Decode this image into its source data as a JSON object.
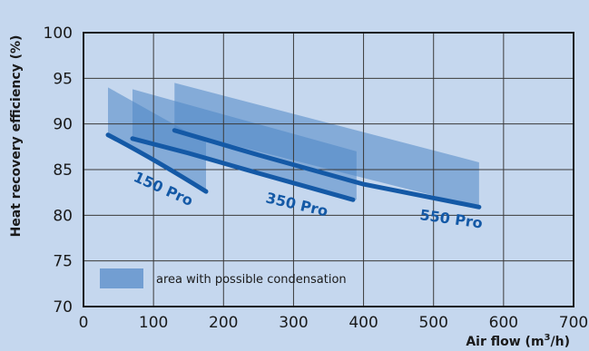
{
  "chart_data": {
    "type": "area",
    "xlabel": "Air flow (m³/h)",
    "ylabel": "Heat recovery efficiency (%)",
    "xlim": [
      0,
      700
    ],
    "ylim": [
      70,
      100
    ],
    "x_ticks": [
      "0",
      "100",
      "200",
      "300",
      "400",
      "500",
      "600",
      "700"
    ],
    "y_ticks": [
      "70",
      "75",
      "80",
      "85",
      "90",
      "95",
      "100"
    ],
    "grid": true,
    "legend": {
      "label": "area with possible condensation",
      "placement": "bottom-left"
    },
    "colors": {
      "background": "#c5d7ee",
      "plot_bg": "#c5d7ee",
      "band": "#4f86c6",
      "line": "#1459a6",
      "grid": "#3a3a3a"
    },
    "series": [
      {
        "name": "150 Pro",
        "line": [
          [
            35,
            88.8
          ],
          [
            100,
            86.2
          ],
          [
            175,
            82.6
          ]
        ],
        "condensation_area": {
          "x": [
            35,
            175
          ],
          "upper": [
            94,
            88
          ],
          "lower": [
            88.8,
            82.6
          ]
        }
      },
      {
        "name": "350 Pro",
        "line": [
          [
            70,
            88.4
          ],
          [
            150,
            86.8
          ],
          [
            250,
            84.6
          ],
          [
            385,
            81.7
          ]
        ],
        "condensation_area": {
          "x": [
            70,
            390
          ],
          "upper": [
            93.8,
            87
          ],
          "lower": [
            88.4,
            81.7
          ]
        }
      },
      {
        "name": "550 Pro",
        "line": [
          [
            130,
            89.3
          ],
          [
            250,
            86.6
          ],
          [
            400,
            83.4
          ],
          [
            565,
            80.9
          ]
        ],
        "condensation_area": {
          "x": [
            130,
            565
          ],
          "upper": [
            94.5,
            85.8
          ],
          "lower": [
            89.3,
            80.9
          ]
        }
      }
    ]
  }
}
